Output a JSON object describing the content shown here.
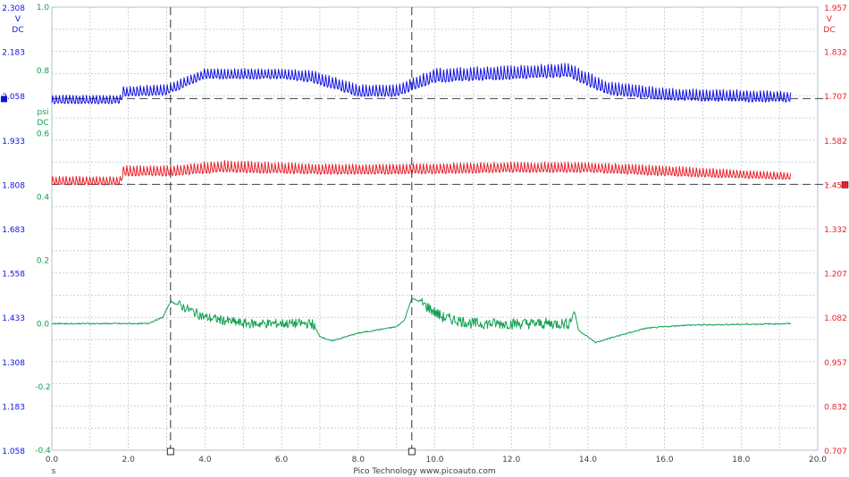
{
  "chart_data": {
    "type": "line",
    "footer": "Pico Technology   www.picoauto.com",
    "colors": {
      "blue": "#1010e0",
      "red": "#e8202a",
      "green": "#10a050",
      "grid": "#b8c8d8",
      "axis_text": "#404040"
    },
    "x_axis": {
      "unit": "s",
      "range": [
        0,
        20
      ],
      "ticks": [
        "0.0",
        "2.0",
        "4.0",
        "6.0",
        "8.0",
        "10.0",
        "12.0",
        "14.0",
        "16.0",
        "18.0",
        "20.0"
      ]
    },
    "y_axes": {
      "left_blue": {
        "unit": [
          "V",
          "DC"
        ],
        "range": [
          1.058,
          2.308
        ],
        "ticks": [
          "2.308",
          "2.183",
          "2.058",
          "1.933",
          "1.808",
          "1.683",
          "1.558",
          "1.433",
          "1.308",
          "1.183",
          "1.058"
        ]
      },
      "left_green": {
        "unit": [
          "psi",
          "DC"
        ],
        "range": [
          -0.4,
          1.0
        ],
        "ticks": [
          "1.0",
          "0.8",
          "0.6",
          "0.4",
          "0.2",
          "0.0",
          "-0.2",
          "-0.4"
        ]
      },
      "right_red": {
        "unit": [
          "V",
          "DC"
        ],
        "range": [
          0.707,
          1.957
        ],
        "ticks": [
          "1.957",
          "1.832",
          "1.707",
          "1.582",
          "1.457",
          "1.332",
          "1.207",
          "1.082",
          "0.957",
          "0.832",
          "0.707"
        ]
      }
    },
    "cursors": [
      3.1,
      9.4
    ],
    "reference_lines": {
      "blue_level_v": 2.05,
      "red_level_v": 1.457
    },
    "series": [
      {
        "key": "blue",
        "axis": "left_blue",
        "end_x": 19.3,
        "low": [
          [
            0,
            2.035
          ],
          [
            1.8,
            2.035
          ],
          [
            1.85,
            2.055
          ],
          [
            3.0,
            2.06
          ],
          [
            4.0,
            2.105
          ],
          [
            6.0,
            2.105
          ],
          [
            6.8,
            2.095
          ],
          [
            8.0,
            2.055
          ],
          [
            9.0,
            2.055
          ],
          [
            10.0,
            2.095
          ],
          [
            13.5,
            2.11
          ],
          [
            14.5,
            2.06
          ],
          [
            16.0,
            2.045
          ],
          [
            18.0,
            2.04
          ],
          [
            19.3,
            2.04
          ]
        ],
        "high": [
          [
            0,
            2.06
          ],
          [
            1.8,
            2.06
          ],
          [
            1.85,
            2.085
          ],
          [
            3.0,
            2.09
          ],
          [
            4.0,
            2.135
          ],
          [
            6.0,
            2.135
          ],
          [
            6.8,
            2.13
          ],
          [
            8.0,
            2.09
          ],
          [
            9.0,
            2.09
          ],
          [
            10.0,
            2.135
          ],
          [
            13.5,
            2.15
          ],
          [
            14.5,
            2.1
          ],
          [
            16.0,
            2.08
          ],
          [
            18.0,
            2.075
          ],
          [
            19.3,
            2.07
          ]
        ]
      },
      {
        "key": "red",
        "axis": "right_red",
        "end_x": 19.3,
        "low": [
          [
            0,
            1.455
          ],
          [
            1.8,
            1.455
          ],
          [
            1.85,
            1.48
          ],
          [
            3.0,
            1.48
          ],
          [
            4.5,
            1.49
          ],
          [
            7.0,
            1.485
          ],
          [
            9.0,
            1.485
          ],
          [
            12.0,
            1.49
          ],
          [
            14.0,
            1.49
          ],
          [
            16.0,
            1.48
          ],
          [
            19.3,
            1.47
          ]
        ],
        "high": [
          [
            0,
            1.48
          ],
          [
            1.8,
            1.48
          ],
          [
            1.85,
            1.51
          ],
          [
            3.0,
            1.51
          ],
          [
            4.5,
            1.525
          ],
          [
            7.0,
            1.515
          ],
          [
            9.0,
            1.515
          ],
          [
            12.0,
            1.52
          ],
          [
            14.0,
            1.52
          ],
          [
            16.0,
            1.51
          ],
          [
            19.3,
            1.49
          ]
        ]
      },
      {
        "key": "green",
        "axis": "left_green",
        "end_x": 19.3,
        "points": [
          [
            0,
            0.0
          ],
          [
            2.5,
            0.0
          ],
          [
            2.9,
            0.02
          ],
          [
            3.1,
            0.07
          ],
          [
            3.3,
            0.06
          ],
          [
            4.0,
            0.02
          ],
          [
            5.0,
            0.0
          ],
          [
            6.8,
            0.0
          ],
          [
            7.0,
            -0.04
          ],
          [
            7.3,
            -0.055
          ],
          [
            8.0,
            -0.03
          ],
          [
            9.0,
            -0.01
          ],
          [
            9.2,
            0.01
          ],
          [
            9.4,
            0.08
          ],
          [
            9.6,
            0.07
          ],
          [
            10.2,
            0.02
          ],
          [
            11.0,
            0.0
          ],
          [
            13.5,
            0.0
          ],
          [
            13.65,
            0.04
          ],
          [
            13.75,
            -0.02
          ],
          [
            14.2,
            -0.06
          ],
          [
            14.6,
            -0.045
          ],
          [
            15.5,
            -0.015
          ],
          [
            16.5,
            -0.005
          ],
          [
            19.3,
            0.0
          ]
        ],
        "noise_ranges": [
          [
            3.3,
            6.9,
            0.03
          ],
          [
            9.6,
            13.6,
            0.035
          ]
        ]
      }
    ]
  }
}
